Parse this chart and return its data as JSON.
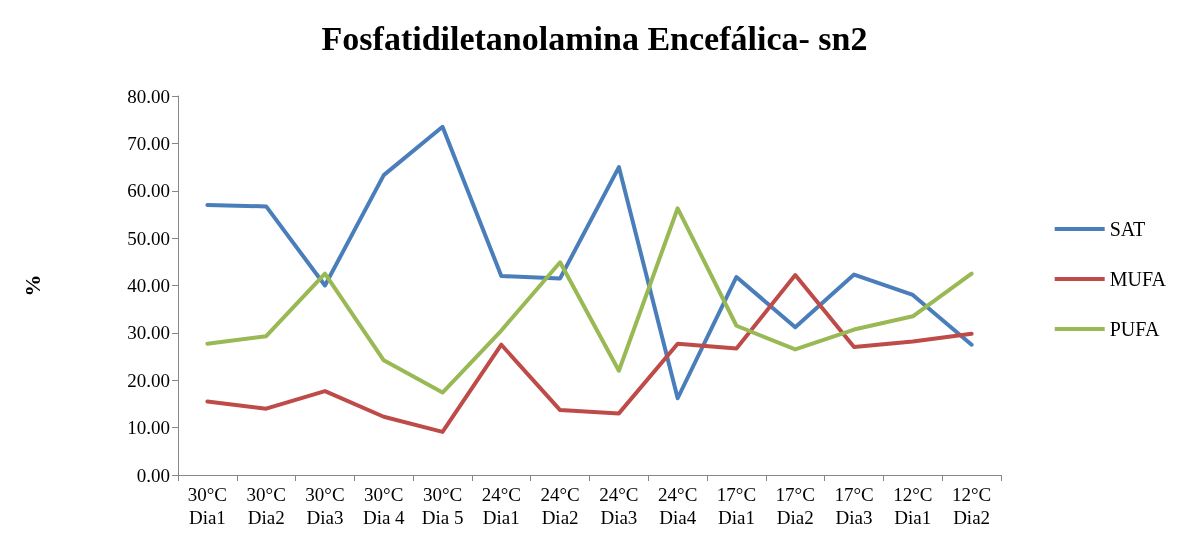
{
  "chart_data": {
    "type": "line",
    "title": "Fosfatidiletanolamina Encefálica- sn2",
    "ylabel": "%",
    "categories": [
      "30°C\nDia1",
      "30°C\nDia2",
      "30°C\nDia3",
      "30°C\nDia 4",
      "30°C\nDia 5",
      "24°C\nDia1",
      "24°C\nDia2",
      "24°C\nDia3",
      "24°C\nDia4",
      "17°C\nDia1",
      "17°C\nDia2",
      "17°C\nDia3",
      "12°C\nDia1",
      "12°C\nDia2"
    ],
    "series": [
      {
        "name": "SAT",
        "color": "#4a7ebb",
        "values": [
          57,
          56.7,
          40,
          63.3,
          73.5,
          42,
          41.5,
          65,
          16.2,
          41.8,
          31.2,
          42.3,
          38,
          27.5
        ]
      },
      {
        "name": "MUFA",
        "color": "#be4b48",
        "values": [
          15.5,
          14,
          17.7,
          12.3,
          9.1,
          27.5,
          13.7,
          13,
          27.7,
          26.7,
          42.2,
          27,
          28.2,
          29.8
        ]
      },
      {
        "name": "PUFA",
        "color": "#98b954",
        "values": [
          27.7,
          29.3,
          42.5,
          24.2,
          17.4,
          30.5,
          44.9,
          22,
          56.3,
          31.5,
          26.5,
          30.7,
          33.5,
          42.5
        ]
      }
    ],
    "ylim": [
      0,
      80
    ],
    "yticks": [
      {
        "value": 0,
        "label": "0.00"
      },
      {
        "value": 10,
        "label": "10.00"
      },
      {
        "value": 20,
        "label": "20.00"
      },
      {
        "value": 30,
        "label": "30.00"
      },
      {
        "value": 40,
        "label": "40.00"
      },
      {
        "value": 50,
        "label": "50.00"
      },
      {
        "value": 60,
        "label": "60.00"
      },
      {
        "value": 70,
        "label": "70.00"
      },
      {
        "value": 80,
        "label": "80.00"
      }
    ],
    "grid": false,
    "legend": "right",
    "marker": "none",
    "line_style": "solid"
  }
}
